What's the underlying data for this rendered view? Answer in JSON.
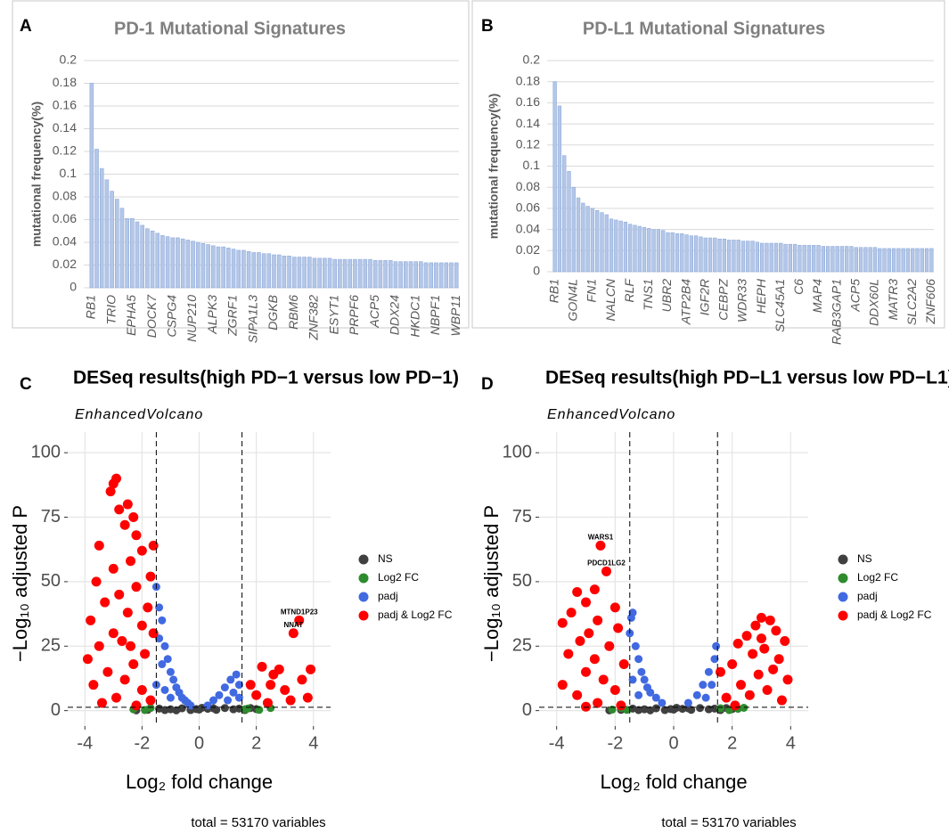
{
  "chart_data": [
    {
      "panel": "A",
      "type": "bar",
      "title": "PD-1 Mutational Signatures",
      "y_label": "mutational frequency(%)",
      "categories": [
        "RB1",
        null,
        null,
        null,
        "TRIO",
        null,
        null,
        null,
        "EPHA5",
        null,
        null,
        null,
        "DOCK7",
        null,
        null,
        null,
        "CSPG4",
        null,
        null,
        null,
        "NUP210",
        null,
        null,
        null,
        "ALPK3",
        null,
        null,
        null,
        "ZGRF1",
        null,
        null,
        null,
        "SIPA1L3",
        null,
        null,
        null,
        "DGKB",
        null,
        null,
        null,
        "RBM6",
        null,
        null,
        null,
        "ZNF382",
        null,
        null,
        null,
        "ESYT1",
        null,
        null,
        null,
        "PRPF6",
        null,
        null,
        null,
        "ACP5",
        null,
        null,
        null,
        "DDX24",
        null,
        null,
        null,
        "HKDC1",
        null,
        null,
        null,
        "NBPF1",
        null,
        null,
        null,
        "WBP11"
      ],
      "values": [
        0.18,
        0.122,
        0.105,
        0.095,
        0.085,
        0.078,
        0.07,
        0.061,
        0.061,
        0.058,
        0.055,
        0.052,
        0.05,
        0.048,
        0.046,
        0.045,
        0.044,
        0.044,
        0.043,
        0.042,
        0.041,
        0.04,
        0.039,
        0.038,
        0.037,
        0.036,
        0.036,
        0.035,
        0.034,
        0.033,
        0.033,
        0.032,
        0.031,
        0.031,
        0.03,
        0.03,
        0.029,
        0.029,
        0.028,
        0.028,
        0.027,
        0.027,
        0.027,
        0.027,
        0.026,
        0.026,
        0.026,
        0.026,
        0.025,
        0.025,
        0.025,
        0.025,
        0.025,
        0.025,
        0.025,
        0.025,
        0.024,
        0.024,
        0.024,
        0.024,
        0.023,
        0.023,
        0.023,
        0.023,
        0.023,
        0.023,
        0.022,
        0.022,
        0.022,
        0.022,
        0.022,
        0.022,
        0.022
      ],
      "color": "#b4c7e7",
      "ylim": [
        0,
        0.2
      ],
      "yticks": [
        0,
        0.02,
        0.04,
        0.06,
        0.08,
        0.1,
        0.12,
        0.14,
        0.16,
        0.18,
        0.2
      ],
      "grid": true
    },
    {
      "panel": "B",
      "type": "bar",
      "title": "PD-L1 Mutational Signatures",
      "y_label": "mutational frequency(%)",
      "categories": [
        "RB1",
        null,
        null,
        null,
        "GON4L",
        null,
        null,
        null,
        "FN1",
        null,
        null,
        null,
        "NALCN",
        null,
        null,
        null,
        "RLF",
        null,
        null,
        null,
        "TNS1",
        null,
        null,
        null,
        "UBR2",
        null,
        null,
        null,
        "ATP2B4",
        null,
        null,
        null,
        "IGF2R",
        null,
        null,
        null,
        "CEBPZ",
        null,
        null,
        null,
        "WDR33",
        null,
        null,
        null,
        "HEPH",
        null,
        null,
        null,
        "SLC45A1",
        null,
        null,
        null,
        "C6",
        null,
        null,
        null,
        "MAP4",
        null,
        null,
        null,
        "RAB3GAP1",
        null,
        null,
        null,
        "ACP5",
        null,
        null,
        null,
        "DDX60L",
        null,
        null,
        null,
        "MATR3",
        null,
        null,
        null,
        "SLC2A2",
        null,
        null,
        null,
        "ZNF606"
      ],
      "values": [
        0.18,
        0.157,
        0.11,
        0.095,
        0.08,
        0.07,
        0.065,
        0.062,
        0.06,
        0.058,
        0.056,
        0.054,
        0.05,
        0.049,
        0.048,
        0.047,
        0.045,
        0.044,
        0.043,
        0.042,
        0.041,
        0.04,
        0.04,
        0.039,
        0.037,
        0.037,
        0.036,
        0.036,
        0.035,
        0.034,
        0.034,
        0.033,
        0.032,
        0.032,
        0.032,
        0.031,
        0.031,
        0.03,
        0.03,
        0.03,
        0.029,
        0.029,
        0.029,
        0.028,
        0.027,
        0.027,
        0.027,
        0.027,
        0.027,
        0.026,
        0.026,
        0.026,
        0.025,
        0.025,
        0.025,
        0.025,
        0.025,
        0.024,
        0.024,
        0.024,
        0.024,
        0.024,
        0.024,
        0.024,
        0.023,
        0.023,
        0.023,
        0.023,
        0.023,
        0.022,
        0.022,
        0.022,
        0.022,
        0.022,
        0.022,
        0.022,
        0.022,
        0.022,
        0.022,
        0.022,
        0.022
      ],
      "color": "#b4c7e7",
      "ylim": [
        0,
        0.2
      ],
      "yticks": [
        0,
        0.02,
        0.04,
        0.06,
        0.08,
        0.1,
        0.12,
        0.14,
        0.16,
        0.18,
        0.2
      ],
      "grid": true
    },
    {
      "panel": "C",
      "type": "scatter",
      "title": "DESeq results(high PD−1 versus low PD−1)",
      "subtitle": "EnhancedVolcano",
      "x_label": "Log₂ fold change",
      "y_label": "−Log₁₀ adjusted P",
      "caption": "total = 53170 variables",
      "xlim": [
        -4.6,
        4.6
      ],
      "ylim": [
        -6,
        108
      ],
      "xticks": [
        -4,
        -2,
        0,
        2,
        4
      ],
      "yticks": [
        0,
        25,
        50,
        75,
        100
      ],
      "grid": true,
      "vlines": [
        -1.5,
        1.5
      ],
      "hline": 1.3,
      "series": [
        {
          "name": "NS",
          "color": "#404040",
          "x": [
            -2.2,
            -1.8,
            -1.4,
            -1.0,
            -0.8,
            -0.6,
            -0.3,
            0,
            0.1,
            0.3,
            0.6,
            0.9,
            1.2,
            1.6,
            1.8,
            2.0,
            -1.2,
            0.5,
            -0.1,
            1.4
          ],
          "values": [
            0.1,
            0.3,
            0.8,
            0.5,
            0.1,
            0.9,
            0.2,
            0.4,
            1.1,
            0.7,
            0.3,
            1.0,
            0.5,
            0.2,
            1.0,
            0.6,
            0.2,
            0.9,
            0.6,
            0.8
          ]
        },
        {
          "name": "Log2 FC",
          "color": "#2e8b2e",
          "x": [
            -2.3,
            -1.9,
            -1.7,
            1.6,
            1.7,
            2.1,
            2.5
          ],
          "values": [
            0.5,
            0.2,
            1.0,
            0.5,
            0.8,
            0.3,
            1.0
          ]
        },
        {
          "name": "padj",
          "color": "#4169e1",
          "x": [
            -1.5,
            -1.4,
            -1.3,
            -1.4,
            -1.2,
            -1.1,
            -1.0,
            -0.9,
            -0.8,
            -0.7,
            -0.6,
            -0.5,
            -0.4,
            -0.3,
            -1.3,
            -1.5,
            -1.2,
            -1.0,
            0.3,
            0.5,
            0.7,
            0.9,
            1.1,
            1.3,
            1.4,
            1.2,
            1.0,
            1.4
          ],
          "values": [
            48,
            40,
            35,
            28,
            25,
            20,
            15,
            12,
            9,
            7,
            5,
            4,
            3,
            2,
            18,
            10,
            8,
            5,
            2,
            4,
            6,
            9,
            12,
            14,
            10,
            7,
            4,
            5
          ]
        },
        {
          "name": "padj & Log2 FC",
          "color": "#ff0000",
          "x": [
            -2.9,
            -3.0,
            -3.1,
            -2.5,
            -2.8,
            -2.3,
            -2.6,
            -2.2,
            -3.5,
            -1.6,
            -2.0,
            -2.4,
            -3.0,
            -1.7,
            -3.6,
            -2.2,
            -2.8,
            -3.3,
            -1.8,
            -2.5,
            -3.8,
            -2.0,
            -3.0,
            -2.7,
            -3.5,
            -1.9,
            -2.3,
            -3.2,
            -2.6,
            -3.7,
            -2.0,
            -2.9,
            -1.7,
            -3.4,
            -2.2,
            -3.9,
            -1.6,
            -2.4,
            3.5,
            3.3,
            2.2,
            2.8,
            3.9,
            3.6,
            2.5,
            3.0,
            2.0,
            3.8,
            2.4,
            3.2,
            1.8,
            2.6
          ],
          "values": [
            90,
            88,
            85,
            80,
            78,
            75,
            72,
            68,
            64,
            64,
            62,
            58,
            55,
            52,
            50,
            48,
            45,
            42,
            40,
            38,
            35,
            33,
            30,
            27,
            25,
            22,
            18,
            15,
            12,
            10,
            8,
            5,
            4,
            3,
            2,
            20,
            30,
            25,
            35,
            30,
            17,
            16,
            16,
            12,
            10,
            8,
            6,
            5,
            3,
            4,
            10,
            14
          ]
        }
      ],
      "annotations": [
        {
          "text": "MTND1P23",
          "x": 3.5,
          "y": 35
        },
        {
          "text": "NNAT",
          "x": 3.3,
          "y": 30
        }
      ]
    },
    {
      "panel": "D",
      "type": "scatter",
      "title": "DESeq results(high PD−L1 versus low PD−L1)",
      "subtitle": "EnhancedVolcano",
      "x_label": "Log₂ fold change",
      "y_label": "−Log₁₀ adjusted P",
      "caption": "total = 53170 variables",
      "xlim": [
        -4.6,
        4.6
      ],
      "ylim": [
        -6,
        108
      ],
      "xticks": [
        -4,
        -2,
        0,
        2,
        4
      ],
      "yticks": [
        0,
        25,
        50,
        75,
        100
      ],
      "grid": true,
      "vlines": [
        -1.5,
        1.5
      ],
      "hline": 1.3,
      "series": [
        {
          "name": "NS",
          "color": "#404040",
          "x": [
            -2.2,
            -1.8,
            -1.4,
            -1.0,
            -0.8,
            -0.6,
            -0.3,
            0,
            0.1,
            0.3,
            0.6,
            0.9,
            1.2,
            1.6,
            1.8,
            2.0,
            -1.2,
            0.5,
            -0.1,
            1.4
          ],
          "values": [
            0.1,
            0.3,
            0.8,
            0.5,
            0.1,
            0.9,
            0.2,
            0.4,
            1.1,
            0.7,
            0.3,
            1.0,
            0.5,
            0.2,
            1.0,
            0.6,
            0.2,
            0.9,
            0.6,
            0.8
          ]
        },
        {
          "name": "Log2 FC",
          "color": "#2e8b2e",
          "x": [
            -2.1,
            -1.8,
            -1.6,
            1.6,
            1.9,
            2.2,
            2.4
          ],
          "values": [
            0.4,
            1.0,
            0.3,
            0.9,
            0.2,
            0.7,
            1.1
          ]
        },
        {
          "name": "padj",
          "color": "#4169e1",
          "x": [
            -1.4,
            -1.45,
            -1.5,
            -1.3,
            -1.2,
            -1.1,
            -1.0,
            -0.9,
            -0.8,
            -0.6,
            -0.4,
            -1.4,
            -1.2,
            0.5,
            0.8,
            1.0,
            1.2,
            1.4,
            1.45,
            1.3,
            1.1
          ],
          "values": [
            38,
            36,
            30,
            25,
            20,
            15,
            12,
            9,
            7,
            5,
            3,
            12,
            6,
            3,
            6,
            10,
            15,
            20,
            25,
            10,
            5
          ]
        },
        {
          "name": "padj & Log2 FC",
          "color": "#ff0000",
          "x": [
            -2.5,
            -2.3,
            -2.7,
            -3.3,
            -3.0,
            -2.0,
            -3.5,
            -2.6,
            -3.8,
            -1.9,
            -2.9,
            -3.2,
            -2.2,
            -3.6,
            -2.7,
            -1.7,
            -3.0,
            -2.4,
            -3.8,
            -2.0,
            -3.3,
            -2.6,
            -1.8,
            -3.0,
            3.0,
            3.3,
            2.8,
            3.5,
            2.5,
            3.8,
            2.2,
            3.1,
            2.7,
            3.6,
            2.0,
            3.4,
            2.9,
            3.9,
            2.3,
            3.2,
            2.6,
            1.8,
            3.7,
            2.1,
            1.6,
            3.0
          ],
          "values": [
            64,
            54,
            47,
            46,
            42,
            40,
            38,
            35,
            34,
            32,
            30,
            27,
            25,
            22,
            20,
            18,
            15,
            12,
            10,
            8,
            6,
            3,
            2,
            1.5,
            36,
            35,
            33,
            31,
            29,
            27,
            26,
            24,
            22,
            20,
            18,
            16,
            14,
            12,
            10,
            8,
            6,
            5,
            4,
            2,
            15,
            28
          ]
        }
      ],
      "annotations": [
        {
          "text": "WARS1",
          "x": -2.5,
          "y": 64
        },
        {
          "text": "PDCD1LG2",
          "x": -2.3,
          "y": 54
        }
      ]
    }
  ]
}
